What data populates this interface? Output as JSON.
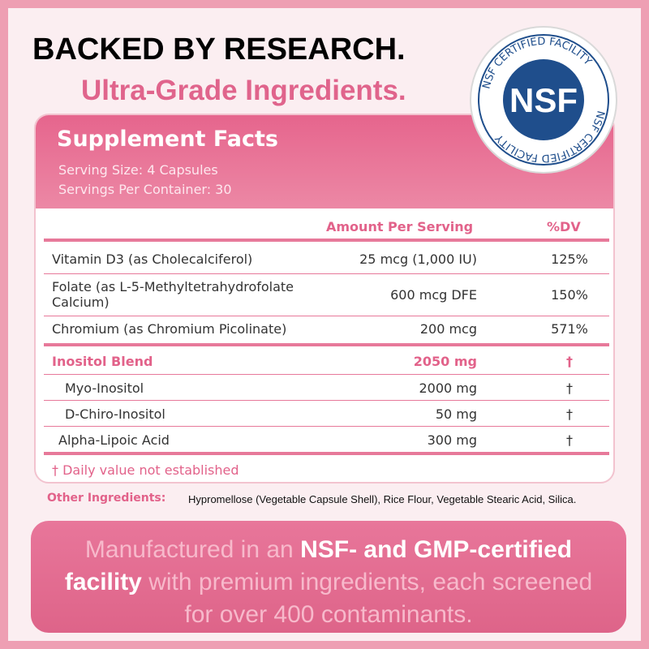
{
  "header": {
    "title": "BACKED BY RESEARCH.",
    "subtitle": "Ultra-Grade Ingredients."
  },
  "badge": {
    "ring_text": "NSF CERTIFIED FACILITY",
    "logo": "NSF"
  },
  "facts": {
    "title": "Supplement Facts",
    "serving_size": "Serving Size: 4 Capsules",
    "servings": "Servings Per Container: 30",
    "columns": [
      "Amount Per Serving",
      "%DV"
    ],
    "rows": [
      [
        "Vitamin D3 (as Cholecalciferol)",
        "25 mcg (1,000 IU)",
        "125%"
      ],
      [
        "Folate (as L-5-Methyltetrahydrofolate Calcium)",
        "600 mcg DFE",
        "150%"
      ],
      [
        "Chromium (as Chromium Picolinate)",
        "200 mcg",
        "571%"
      ]
    ],
    "blend": {
      "name": "Inositol Blend",
      "amount": "2050 mg",
      "dv": "†",
      "items": [
        [
          "Myo-Inositol",
          "2000 mg",
          "†"
        ],
        [
          "D-Chiro-Inositol",
          "50 mg",
          "†"
        ]
      ]
    },
    "extra_rows": [
      [
        "Alpha-Lipoic Acid",
        "300 mg",
        "†"
      ]
    ],
    "footnote": "† Daily value not established"
  },
  "other": {
    "label": "Other Ingredients:",
    "text": "Hypromellose (Vegetable Capsule Shell), Rice Flour, Vegetable Stearic Acid, Silica."
  },
  "banner": {
    "parts": [
      "Manufactured in an ",
      "NSF- and GMP-certified facility",
      " with premium ingredients, each screened for over 400 contaminants."
    ]
  }
}
